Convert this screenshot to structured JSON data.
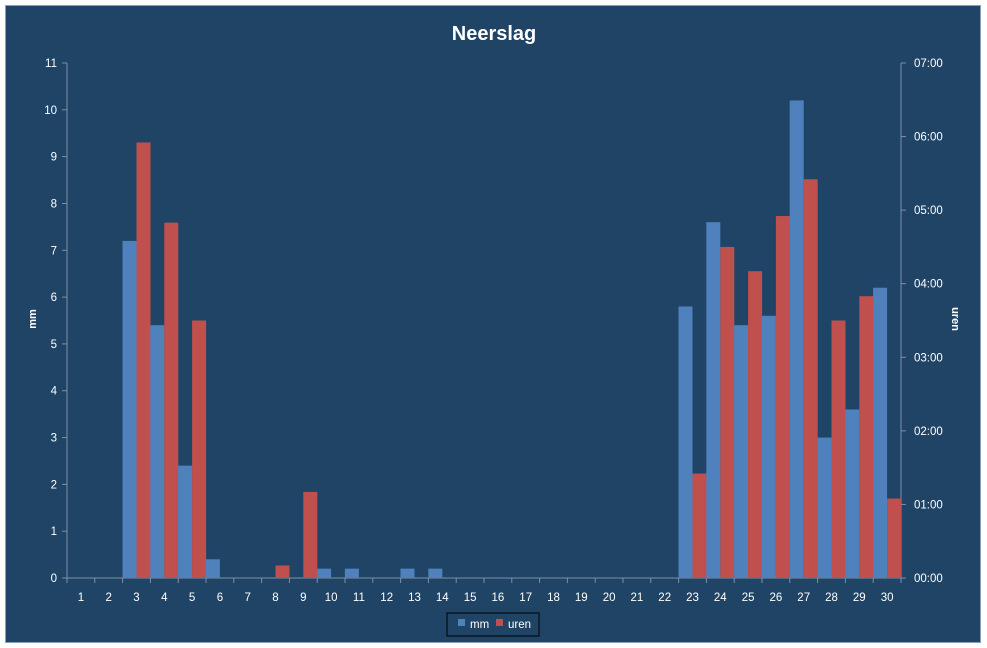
{
  "chart_data": {
    "type": "bar",
    "title": "Neerslag",
    "ylabel": "mm",
    "y2label": "uren",
    "categories": [
      "1",
      "2",
      "3",
      "4",
      "5",
      "6",
      "7",
      "8",
      "9",
      "10",
      "11",
      "12",
      "13",
      "14",
      "15",
      "16",
      "17",
      "18",
      "19",
      "20",
      "21",
      "22",
      "23",
      "24",
      "25",
      "26",
      "27",
      "28",
      "29",
      "30"
    ],
    "ylim": [
      0,
      11
    ],
    "y_ticks": [
      "0",
      "1",
      "2",
      "3",
      "4",
      "5",
      "6",
      "7",
      "8",
      "9",
      "10",
      "11"
    ],
    "y2lim_hours": [
      0,
      7
    ],
    "y2_ticks": [
      "00:00",
      "01:00",
      "02:00",
      "03:00",
      "04:00",
      "05:00",
      "06:00",
      "07:00"
    ],
    "series": [
      {
        "name": "mm",
        "axis": "left",
        "color": "#4f81bd",
        "values": [
          0,
          0,
          7.2,
          5.4,
          2.4,
          0.4,
          0,
          0,
          0,
          0.2,
          0.2,
          0,
          0.2,
          0.2,
          0,
          0,
          0,
          0,
          0,
          0,
          0,
          0,
          5.8,
          7.6,
          5.4,
          5.6,
          10.2,
          3.0,
          3.6,
          6.2
        ]
      },
      {
        "name": "uren",
        "axis": "right",
        "color": "#c0504d",
        "values": [
          0,
          0,
          5.92,
          4.83,
          3.5,
          0,
          0,
          0.17,
          1.17,
          0,
          0,
          0,
          0,
          0,
          0,
          0,
          0,
          0,
          0,
          0,
          0,
          0,
          1.42,
          4.5,
          4.17,
          4.92,
          5.42,
          3.5,
          3.83,
          1.08
        ]
      }
    ],
    "legend_position": "bottom",
    "grid": false
  }
}
